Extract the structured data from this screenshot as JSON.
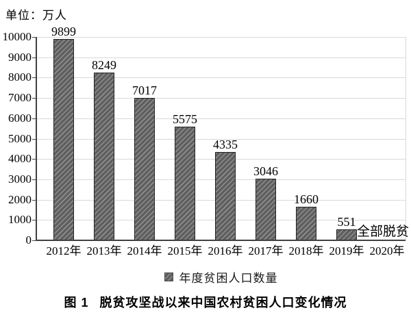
{
  "chart_data": {
    "type": "bar",
    "title": "脱贫攻坚战以来中国农村贫困人口变化情况",
    "unit_label": "单位：万人",
    "categories": [
      "2012年",
      "2013年",
      "2014年",
      "2015年",
      "2016年",
      "2017年",
      "2018年",
      "2019年",
      "2020年"
    ],
    "values": [
      9899,
      8249,
      7017,
      5575,
      4335,
      3046,
      1660,
      551,
      null
    ],
    "annotation": "全部脱贫",
    "annotation_category": "2020年",
    "legend": "年度贫困人口数量",
    "legend_position": "bottom-center",
    "xlabel": "",
    "ylabel": "",
    "ylim": [
      0,
      10000
    ],
    "ytick_step": 1000,
    "yticks": [
      0,
      1000,
      2000,
      3000,
      4000,
      5000,
      6000,
      7000,
      8000,
      9000,
      10000
    ],
    "grid": "horizontal",
    "bar_color_base": "#5f5f5f",
    "bar_hatch_color": "#8f8f8f",
    "bar_border_color": "#222222",
    "gridline_color": "#d9d9d9",
    "axis_color": "#404040"
  },
  "caption": {
    "number": "图 1",
    "title": "脱贫攻坚战以来中国农村贫困人口变化情况"
  }
}
